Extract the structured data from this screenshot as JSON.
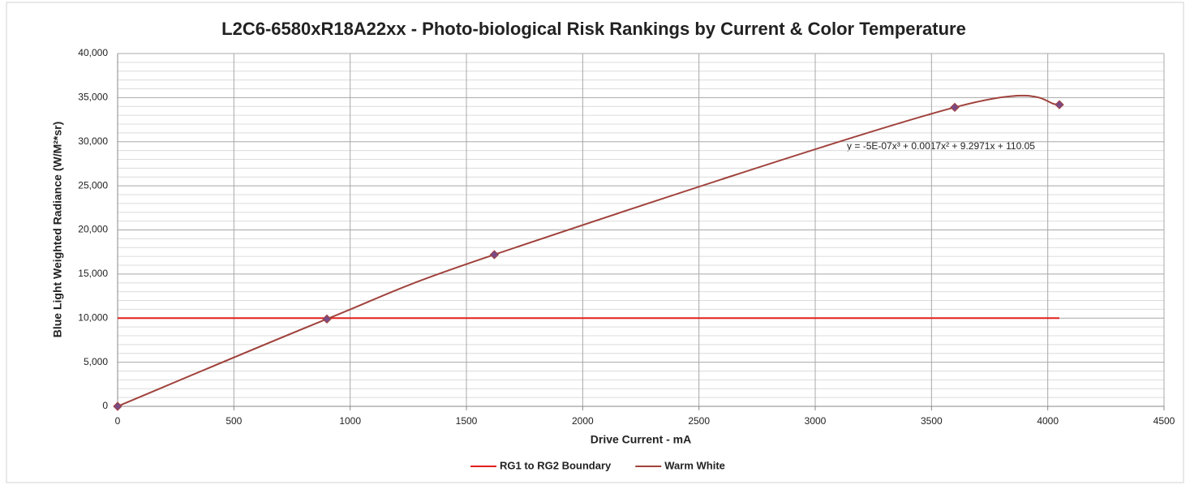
{
  "chart_data": {
    "type": "scatter",
    "title": "L2C6-6580xR18A22xx - Photo-biological Risk Rankings by Current & Color Temperature",
    "xlabel": "Drive Current - mA",
    "ylabel": "Blue Light Weighted Radiance (W/M²*sr)",
    "annotation": "y = -5E-07x³ + 0.0017x² + 9.2971x + 110.05",
    "xlim": [
      0,
      4500
    ],
    "xticks": [
      0,
      500,
      1000,
      1500,
      2000,
      2500,
      3000,
      3500,
      4000,
      4500
    ],
    "ylim": [
      0,
      40000
    ],
    "yticks": [
      0,
      {
        "value": 5000,
        "label": "5,000"
      },
      {
        "value": 10000,
        "label": "10,000"
      },
      {
        "value": 15000,
        "label": "15,000"
      },
      {
        "value": 20000,
        "label": "20,000"
      },
      {
        "value": 25000,
        "label": "25,000"
      },
      {
        "value": 30000,
        "label": "30,000"
      },
      {
        "value": 35000,
        "label": "35,000"
      },
      {
        "value": 40000,
        "label": "40,000"
      }
    ],
    "grid": true,
    "legend": "bottom",
    "series": [
      {
        "name": "RG1 to RG2 Boundary",
        "color": "#e0201b",
        "x": [
          0,
          4050
        ],
        "values": [
          10000,
          10000
        ]
      },
      {
        "name": "Warm White",
        "color": "#a0423c",
        "marker_color": "#7a4a86",
        "x": [
          0,
          900,
          1620,
          3600,
          4050
        ],
        "values": [
          0,
          9900,
          17200,
          33900,
          34200
        ]
      }
    ]
  }
}
